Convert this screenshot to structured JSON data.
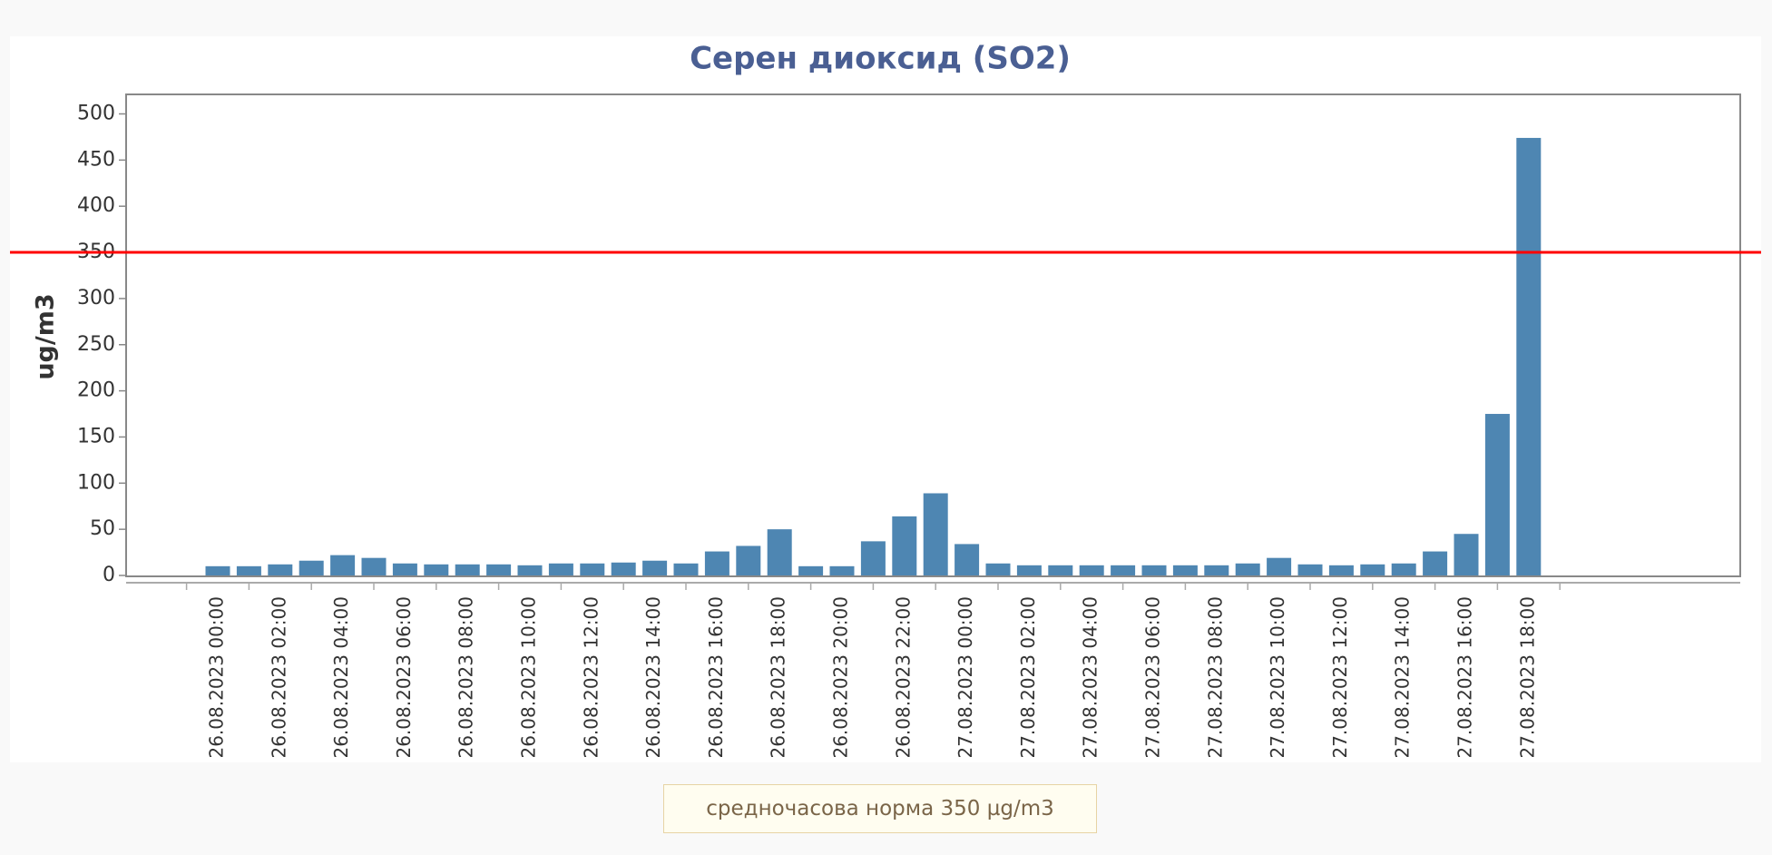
{
  "chart_data": {
    "type": "bar",
    "title": "Серен диоксид (SO2)",
    "xlabel": "",
    "ylabel": "ug/m3",
    "ylim": [
      0,
      520
    ],
    "yticks": [
      0,
      50,
      100,
      150,
      200,
      250,
      300,
      350,
      400,
      450,
      500
    ],
    "grid": false,
    "bar_color": "#4e86b2",
    "threshold": {
      "value": 350,
      "color": "#ff0000"
    },
    "x_tick_labels": [
      "26.08.2023 00:00",
      "26.08.2023 02:00",
      "26.08.2023 04:00",
      "26.08.2023 06:00",
      "26.08.2023 08:00",
      "26.08.2023 10:00",
      "26.08.2023 12:00",
      "26.08.2023 14:00",
      "26.08.2023 16:00",
      "26.08.2023 18:00",
      "26.08.2023 20:00",
      "26.08.2023 22:00",
      "27.08.2023 00:00",
      "27.08.2023 02:00",
      "27.08.2023 04:00",
      "27.08.2023 06:00",
      "27.08.2023 08:00",
      "27.08.2023 10:00",
      "27.08.2023 12:00",
      "27.08.2023 14:00",
      "27.08.2023 16:00",
      "27.08.2023 18:00"
    ],
    "values": [
      10,
      10,
      12,
      16,
      22,
      19,
      13,
      12,
      12,
      12,
      11,
      13,
      13,
      14,
      16,
      13,
      26,
      32,
      50,
      10,
      10,
      37,
      64,
      89,
      34,
      13,
      11,
      11,
      11,
      11,
      11,
      11,
      11,
      13,
      19,
      12,
      11,
      12,
      13,
      26,
      45,
      175,
      474
    ]
  },
  "norm_label": "средночасова норма 350 µg/m3"
}
